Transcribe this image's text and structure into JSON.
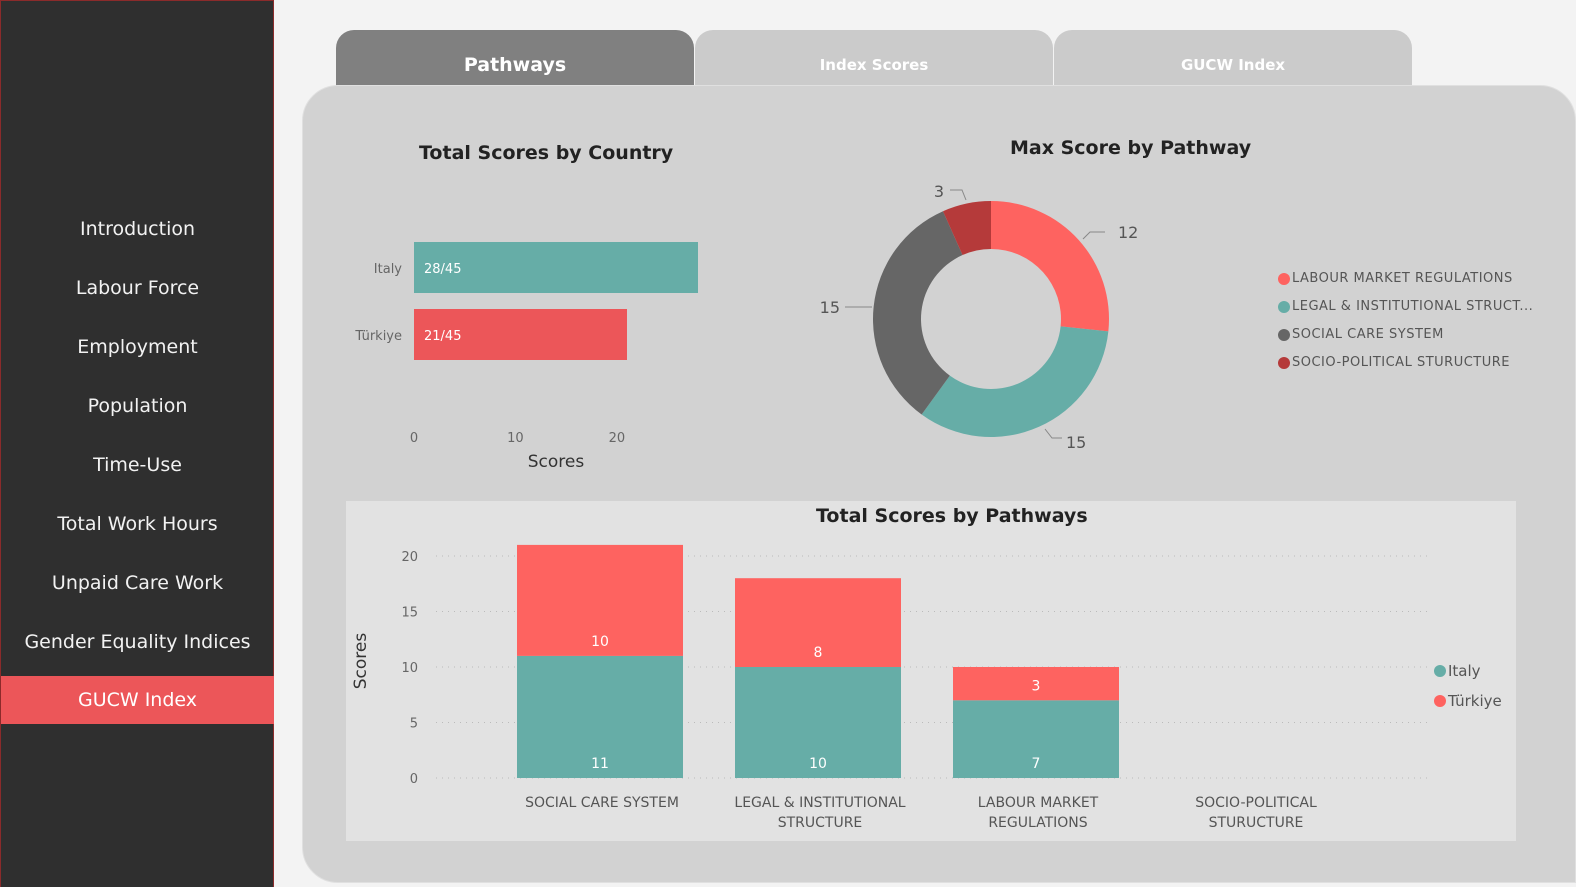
{
  "sidebar": {
    "items": [
      {
        "label": "Introduction",
        "active": false
      },
      {
        "label": "Labour Force",
        "active": false
      },
      {
        "label": "Employment",
        "active": false
      },
      {
        "label": "Population",
        "active": false
      },
      {
        "label": "Time-Use",
        "active": false
      },
      {
        "label": "Total Work Hours",
        "active": false
      },
      {
        "label": "Unpaid Care Work",
        "active": false
      },
      {
        "label": "Gender Equality Indices",
        "active": false
      },
      {
        "label": "GUCW Index",
        "active": true
      }
    ]
  },
  "tabs": [
    {
      "label": "Pathways",
      "active": true
    },
    {
      "label": "Index Scores",
      "active": false
    },
    {
      "label": "GUCW Index",
      "active": false
    }
  ],
  "colors": {
    "italy": "#66ada7",
    "turkiye": "#ec5659",
    "turkiye_stack": "#fe6360",
    "labour": "#fe6360",
    "legal": "#66ada7",
    "social": "#666666",
    "socio": "#b53a3a"
  },
  "chart_data": [
    {
      "type": "bar",
      "orientation": "horizontal",
      "title": "Total Scores by Country",
      "categories": [
        "Italy",
        "Türkiye"
      ],
      "values": [
        28,
        21
      ],
      "data_labels": [
        "28/45",
        "21/45"
      ],
      "xlabel": "Scores",
      "xticks": [
        "0",
        "10",
        "20"
      ],
      "xlim": [
        0,
        28
      ]
    },
    {
      "type": "pie",
      "donut": true,
      "title": "Max Score by Pathway",
      "labels": [
        "LABOUR MARKET REGULATIONS",
        "LEGAL & INSTITUTIONAL STRUCT...",
        "SOCIAL CARE SYSTEM",
        "SOCIO-POLITICAL STURUCTURE"
      ],
      "values": [
        12,
        15,
        15,
        3
      ],
      "legend_position": "right"
    },
    {
      "type": "bar",
      "stacked": true,
      "title": "Total Scores by Pathways",
      "categories": [
        "SOCIAL CARE SYSTEM",
        "LEGAL & INSTITUTIONAL STRUCTURE",
        "LABOUR MARKET REGULATIONS",
        "SOCIO-POLITICAL STURUCTURE"
      ],
      "category_lines": [
        [
          "SOCIAL CARE SYSTEM"
        ],
        [
          "LEGAL & INSTITUTIONAL",
          "STRUCTURE"
        ],
        [
          "LABOUR MARKET",
          "REGULATIONS"
        ],
        [
          "SOCIO-POLITICAL",
          "STURUCTURE"
        ]
      ],
      "series": [
        {
          "name": "Italy",
          "values": [
            11,
            10,
            7,
            0
          ]
        },
        {
          "name": "Türkiye",
          "values": [
            10,
            8,
            3,
            0
          ]
        }
      ],
      "ylabel": "Scores",
      "yticks": [
        "0",
        "5",
        "10",
        "15",
        "20"
      ],
      "ylim": [
        0,
        20
      ],
      "grid": true,
      "legend_position": "right"
    }
  ]
}
